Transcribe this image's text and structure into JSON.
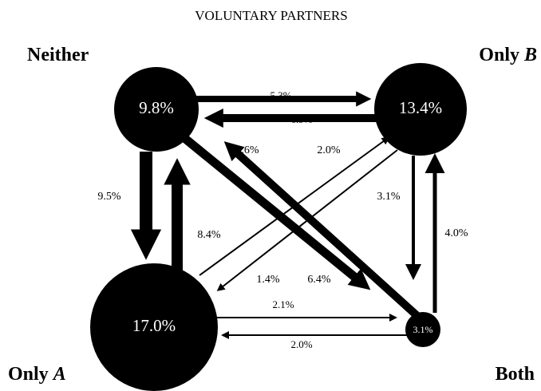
{
  "title": "VOLUNTARY PARTNERS",
  "nodes": [
    {
      "label_parts": [
        "Neither"
      ],
      "value": "9.8%"
    },
    {
      "label_parts": [
        "Only",
        "B"
      ],
      "value": "13.4%"
    },
    {
      "label_parts": [
        "Only",
        "A"
      ],
      "value": "17.0%"
    },
    {
      "label_parts": [
        "Both"
      ],
      "value": "3.1%"
    }
  ],
  "edges": [
    {
      "from": "Neither",
      "to": "Only B",
      "label": "5.3%"
    },
    {
      "from": "Only B",
      "to": "Neither",
      "label": "6.9%"
    },
    {
      "from": "Neither",
      "to": "Only A",
      "label": "9.5%"
    },
    {
      "from": "Only A",
      "to": "Neither",
      "label": "8.4%"
    },
    {
      "from": "Neither",
      "to": "Both",
      "label": "6.4%"
    },
    {
      "from": "Both",
      "to": "Neither",
      "label": "5.6%"
    },
    {
      "from": "Only B",
      "to": "Only A",
      "label": "1.4%"
    },
    {
      "from": "Only A",
      "to": "Only B",
      "label": "2.0%"
    },
    {
      "from": "Only B",
      "to": "Both",
      "label": "3.1%"
    },
    {
      "from": "Both",
      "to": "Only B",
      "label": "4.0%"
    },
    {
      "from": "Only A",
      "to": "Both",
      "label": "2.1%"
    },
    {
      "from": "Both",
      "to": "Only A",
      "label": "2.0%"
    }
  ]
}
